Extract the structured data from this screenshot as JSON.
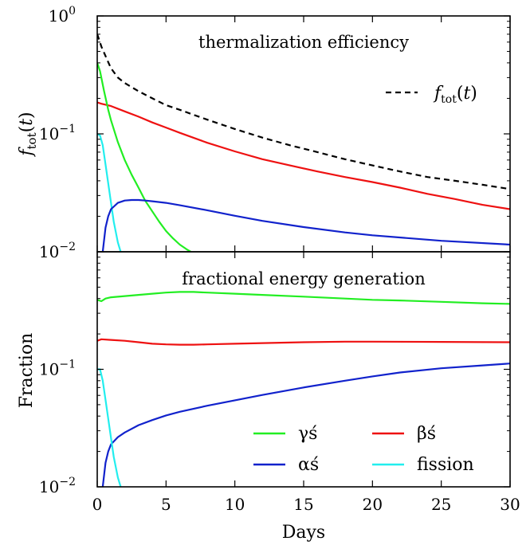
{
  "chart_data": [
    {
      "type": "line",
      "title": "thermalization efficiency",
      "ylabel": "f_tot(t)",
      "xlabel": "",
      "xlim": [
        0,
        30
      ],
      "ylim": [
        0.01,
        1
      ],
      "yscale": "log",
      "x_ticks": [
        0,
        5,
        10,
        15,
        20,
        25,
        30
      ],
      "y_ticks": [
        {
          "value": 0.01,
          "label": "10",
          "exp": "−2"
        },
        {
          "value": 0.1,
          "label": "10",
          "exp": "−1"
        },
        {
          "value": 1,
          "label": "10",
          "exp": "0"
        }
      ],
      "legend": {
        "location": "upper right",
        "entries": [
          {
            "label": "f_tot(t)",
            "series": "ftot"
          }
        ]
      },
      "series": [
        {
          "id": "ftot",
          "name": "f_tot(t)",
          "color": "#000000",
          "dash": "dashed",
          "x": [
            0,
            0.3,
            0.7,
            1,
            1.5,
            2,
            3,
            4,
            5,
            6,
            7,
            8,
            10,
            12,
            14,
            16,
            18,
            20,
            22,
            24,
            26,
            28,
            30
          ],
          "y": [
            0.7,
            0.55,
            0.43,
            0.36,
            0.3,
            0.27,
            0.23,
            0.2,
            0.175,
            0.16,
            0.145,
            0.132,
            0.11,
            0.093,
            0.08,
            0.07,
            0.061,
            0.054,
            0.048,
            0.043,
            0.04,
            0.037,
            0.034
          ]
        },
        {
          "id": "beta",
          "color": "#ee1111",
          "x": [
            0,
            0.3,
            1,
            2,
            3,
            4,
            5,
            6,
            8,
            10,
            12,
            14,
            16,
            18,
            20,
            22,
            24,
            26,
            28,
            30
          ],
          "y": [
            0.185,
            0.18,
            0.172,
            0.155,
            0.14,
            0.125,
            0.113,
            0.102,
            0.084,
            0.071,
            0.061,
            0.054,
            0.048,
            0.043,
            0.039,
            0.035,
            0.031,
            0.028,
            0.025,
            0.023
          ]
        },
        {
          "id": "gamma",
          "color": "#22ee22",
          "x": [
            0,
            0.2,
            0.5,
            0.8,
            1,
            1.5,
            2,
            2.5,
            3,
            3.5,
            4,
            4.5,
            5,
            5.5,
            6,
            6.5,
            6.8
          ],
          "y": [
            0.4,
            0.34,
            0.23,
            0.16,
            0.13,
            0.085,
            0.06,
            0.045,
            0.035,
            0.027,
            0.022,
            0.018,
            0.015,
            0.013,
            0.0115,
            0.0105,
            0.01
          ]
        },
        {
          "id": "fission",
          "color": "#22eeee",
          "x": [
            0,
            0.2,
            0.4,
            0.6,
            0.8,
            1,
            1.2,
            1.5,
            1.7
          ],
          "y": [
            0.1,
            0.097,
            0.08,
            0.055,
            0.038,
            0.026,
            0.018,
            0.012,
            0.01
          ]
        },
        {
          "id": "alpha",
          "color": "#1122cc",
          "x": [
            0.4,
            0.6,
            0.8,
            1,
            1.5,
            2,
            2.5,
            3,
            3.5,
            4,
            5,
            6,
            8,
            10,
            12,
            15,
            18,
            20,
            25,
            30
          ],
          "y": [
            0.01,
            0.016,
            0.02,
            0.023,
            0.026,
            0.0272,
            0.0275,
            0.0275,
            0.0272,
            0.0268,
            0.026,
            0.0248,
            0.0225,
            0.0202,
            0.0183,
            0.0162,
            0.0146,
            0.0138,
            0.0124,
            0.0115
          ]
        }
      ]
    },
    {
      "type": "line",
      "title": "fractional energy generation",
      "ylabel": "Fraction",
      "xlabel": "Days",
      "xlim": [
        0,
        30
      ],
      "ylim": [
        0.01,
        1
      ],
      "yscale": "log",
      "x_ticks": [
        0,
        5,
        10,
        15,
        20,
        25,
        30
      ],
      "y_ticks": [
        {
          "value": 0.01,
          "label": "10",
          "exp": "−2"
        },
        {
          "value": 0.1,
          "label": "10",
          "exp": "−1"
        }
      ],
      "legend": {
        "location": "lower right",
        "entries": [
          {
            "label": "γś",
            "series": "gamma"
          },
          {
            "label": "βś",
            "series": "beta"
          },
          {
            "label": "αś",
            "series": "alpha"
          },
          {
            "label": "fission",
            "series": "fission"
          }
        ]
      },
      "series": [
        {
          "id": "gamma",
          "name": "γś",
          "color": "#22ee22",
          "x": [
            0,
            0.3,
            0.6,
            1,
            2,
            3,
            4,
            5,
            6,
            7,
            8,
            10,
            12,
            15,
            18,
            20,
            22,
            25,
            28,
            30
          ],
          "y": [
            0.39,
            0.38,
            0.4,
            0.41,
            0.42,
            0.43,
            0.44,
            0.45,
            0.455,
            0.455,
            0.45,
            0.44,
            0.43,
            0.415,
            0.4,
            0.39,
            0.385,
            0.375,
            0.365,
            0.36
          ]
        },
        {
          "id": "beta",
          "name": "βś",
          "color": "#ee1111",
          "x": [
            0,
            0.3,
            1,
            2,
            3,
            4,
            5,
            6,
            7,
            8,
            10,
            12,
            15,
            18,
            20,
            25,
            30
          ],
          "y": [
            0.175,
            0.18,
            0.178,
            0.175,
            0.17,
            0.165,
            0.163,
            0.162,
            0.162,
            0.163,
            0.165,
            0.167,
            0.17,
            0.172,
            0.172,
            0.171,
            0.17
          ]
        },
        {
          "id": "alpha",
          "name": "αś",
          "color": "#1122cc",
          "x": [
            0.4,
            0.6,
            0.8,
            1,
            1.5,
            2,
            3,
            4,
            5,
            6,
            8,
            10,
            12,
            15,
            18,
            20,
            22,
            25,
            28,
            30
          ],
          "y": [
            0.01,
            0.016,
            0.02,
            0.023,
            0.0265,
            0.029,
            0.0335,
            0.037,
            0.0405,
            0.0435,
            0.049,
            0.0545,
            0.0605,
            0.07,
            0.08,
            0.087,
            0.094,
            0.102,
            0.108,
            0.112
          ]
        },
        {
          "id": "fission",
          "name": "fission",
          "color": "#22eeee",
          "x": [
            0,
            0.2,
            0.4,
            0.6,
            0.8,
            1,
            1.2,
            1.5,
            1.7
          ],
          "y": [
            0.1,
            0.1,
            0.08,
            0.055,
            0.038,
            0.026,
            0.018,
            0.012,
            0.01
          ]
        }
      ]
    }
  ]
}
